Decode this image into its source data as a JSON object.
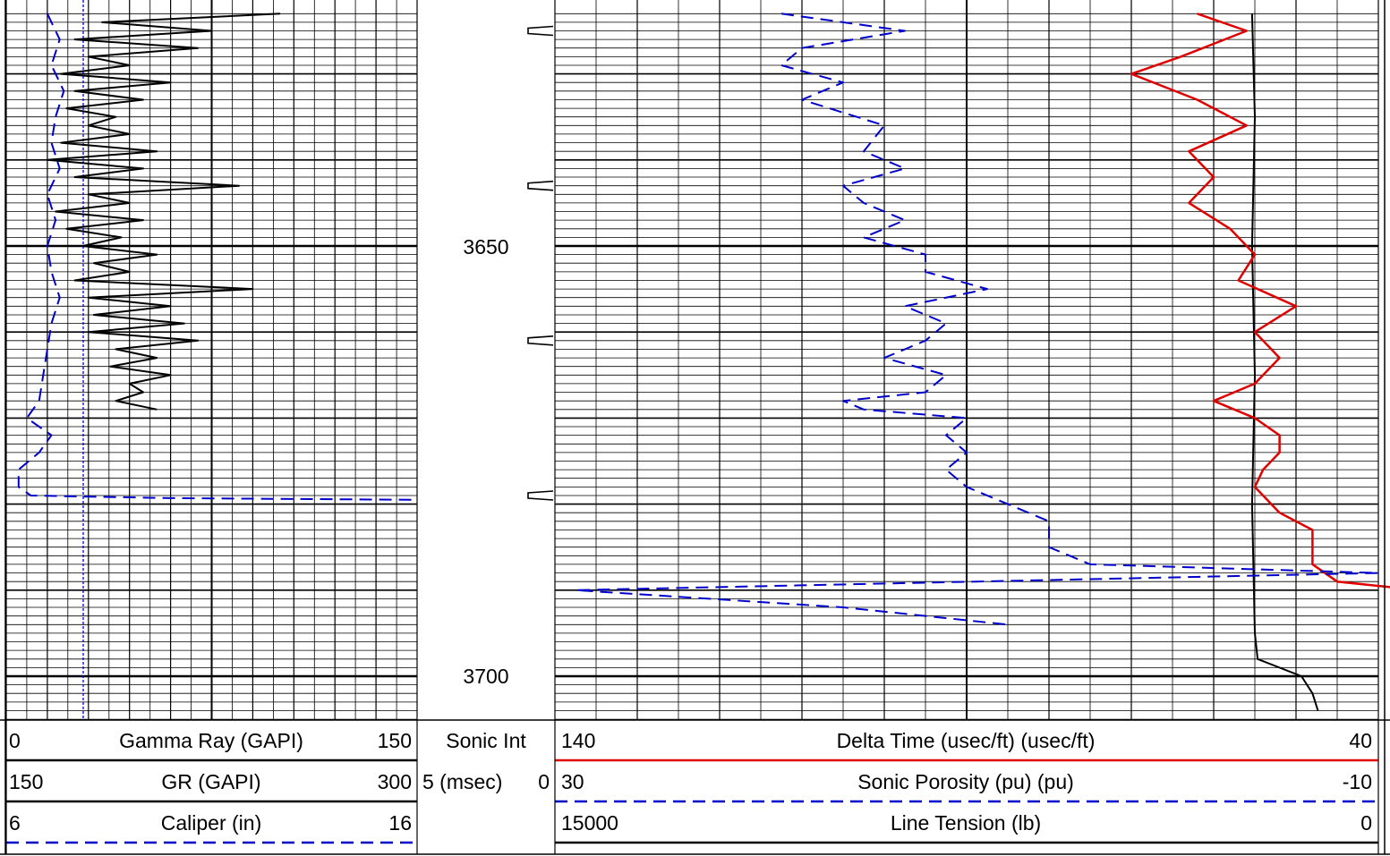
{
  "chart_data": {
    "type": "line",
    "title": "",
    "depth_ticks": [
      "3650",
      "3700"
    ],
    "depth_range": [
      3623,
      3725
    ],
    "tracks": [
      {
        "name": "track-1",
        "grid": "linear",
        "curves": [
          {
            "label": "Gamma Ray (GAPI)",
            "min": "0",
            "max": "150",
            "unit_min": 0,
            "unit_max": 150,
            "color": "#000000",
            "style": "solid",
            "points": [
              [
                3623,
                100
              ],
              [
                3624,
                35
              ],
              [
                3625,
                75
              ],
              [
                3626,
                25
              ],
              [
                3627,
                70
              ],
              [
                3628,
                30
              ],
              [
                3629,
                45
              ],
              [
                3630,
                20
              ],
              [
                3631,
                60
              ],
              [
                3632,
                25
              ],
              [
                3633,
                50
              ],
              [
                3634,
                22
              ],
              [
                3635,
                40
              ],
              [
                3636,
                30
              ],
              [
                3637,
                45
              ],
              [
                3638,
                20
              ],
              [
                3639,
                55
              ],
              [
                3640,
                15
              ],
              [
                3641,
                50
              ],
              [
                3642,
                25
              ],
              [
                3643,
                85
              ],
              [
                3644,
                30
              ],
              [
                3645,
                45
              ],
              [
                3646,
                18
              ],
              [
                3647,
                50
              ],
              [
                3648,
                22
              ],
              [
                3649,
                42
              ],
              [
                3650,
                28
              ],
              [
                3651,
                55
              ],
              [
                3652,
                32
              ],
              [
                3653,
                45
              ],
              [
                3654,
                25
              ],
              [
                3655,
                90
              ],
              [
                3656,
                30
              ],
              [
                3657,
                60
              ],
              [
                3658,
                32
              ],
              [
                3659,
                65
              ],
              [
                3660,
                30
              ],
              [
                3661,
                70
              ],
              [
                3662,
                40
              ],
              [
                3663,
                55
              ],
              [
                3664,
                38
              ],
              [
                3665,
                60
              ],
              [
                3666,
                45
              ],
              [
                3667,
                50
              ],
              [
                3668,
                40
              ],
              [
                3669,
                55
              ]
            ]
          },
          {
            "label": "Caliper (in)",
            "min": "6",
            "max": "16",
            "unit_min": 6,
            "unit_max": 16,
            "color": "#0000cc",
            "style": "dash",
            "points": [
              [
                3623,
                7.0
              ],
              [
                3626,
                7.3
              ],
              [
                3629,
                7.1
              ],
              [
                3632,
                7.4
              ],
              [
                3635,
                7.2
              ],
              [
                3638,
                7.1
              ],
              [
                3641,
                7.3
              ],
              [
                3644,
                7.0
              ],
              [
                3647,
                7.2
              ],
              [
                3650,
                7.0
              ],
              [
                3653,
                7.1
              ],
              [
                3656,
                7.3
              ],
              [
                3659,
                7.1
              ],
              [
                3662,
                7.0
              ],
              [
                3665,
                6.9
              ],
              [
                3668,
                6.8
              ],
              [
                3670,
                6.5
              ],
              [
                3672,
                7.1
              ],
              [
                3674,
                6.8
              ],
              [
                3676,
                6.3
              ],
              [
                3678,
                6.3
              ],
              [
                3679,
                6.6
              ],
              [
                3679.3,
                10
              ],
              [
                3679.5,
                16
              ]
            ]
          }
        ]
      },
      {
        "name": "depth-track",
        "curves": [
          {
            "label": "Sonic Int",
            "min": "5  (msec)",
            "max": "0"
          }
        ],
        "integration_ticks": [
          3625,
          3643,
          3661,
          3679
        ]
      },
      {
        "name": "track-2",
        "grid": "linear",
        "curves": [
          {
            "label": "Delta Time (usec/ft) (usec/ft)",
            "min": "140",
            "max": "40",
            "unit_min": 140,
            "unit_max": 40,
            "color": "#e00000",
            "style": "solid",
            "points": [
              [
                3623,
                62
              ],
              [
                3625,
                56
              ],
              [
                3628,
                64
              ],
              [
                3630,
                70
              ],
              [
                3633,
                62
              ],
              [
                3636,
                56
              ],
              [
                3639,
                63
              ],
              [
                3642,
                60
              ],
              [
                3645,
                63
              ],
              [
                3648,
                58
              ],
              [
                3651,
                55
              ],
              [
                3654,
                57
              ],
              [
                3657,
                50
              ],
              [
                3660,
                55
              ],
              [
                3663,
                52
              ],
              [
                3666,
                55
              ],
              [
                3668,
                60
              ],
              [
                3670,
                55
              ],
              [
                3672,
                52
              ],
              [
                3674,
                52
              ],
              [
                3676,
                54
              ],
              [
                3678,
                55
              ],
              [
                3681,
                52
              ],
              [
                3683,
                48
              ],
              [
                3687,
                48
              ],
              [
                3689,
                45
              ],
              [
                3690,
                35
              ]
            ]
          },
          {
            "label": "Sonic Porosity (pu) (pu)",
            "min": "30",
            "max": "-10",
            "unit_min": 30,
            "unit_max": -10,
            "color": "#0000cc",
            "style": "dash",
            "points": [
              [
                3623,
                19
              ],
              [
                3625,
                13
              ],
              [
                3627,
                18
              ],
              [
                3629,
                19
              ],
              [
                3631,
                16
              ],
              [
                3633,
                18
              ],
              [
                3636,
                14
              ],
              [
                3639,
                15
              ],
              [
                3641,
                13
              ],
              [
                3643,
                16
              ],
              [
                3645,
                15
              ],
              [
                3647,
                13
              ],
              [
                3649,
                15
              ],
              [
                3651,
                12
              ],
              [
                3653,
                12
              ],
              [
                3655,
                9
              ],
              [
                3657,
                13
              ],
              [
                3659,
                11
              ],
              [
                3661,
                12
              ],
              [
                3663,
                14
              ],
              [
                3665,
                11
              ],
              [
                3667,
                12
              ],
              [
                3668,
                16
              ],
              [
                3669,
                15
              ],
              [
                3670,
                10
              ],
              [
                3672,
                11
              ],
              [
                3674,
                10
              ],
              [
                3676,
                11
              ],
              [
                3678,
                10
              ],
              [
                3680,
                8
              ],
              [
                3682,
                6
              ],
              [
                3685,
                6
              ],
              [
                3687,
                4
              ],
              [
                3688,
                -10
              ],
              [
                3690,
                29
              ],
              [
                3692,
                16
              ],
              [
                3694,
                8
              ]
            ]
          },
          {
            "label": "Line Tension (lb)",
            "min": "15000",
            "max": "0",
            "unit_min": 15000,
            "unit_max": 0,
            "color": "#000000",
            "style": "solid",
            "points": [
              [
                3623,
                2300
              ],
              [
                3635,
                2250
              ],
              [
                3650,
                2300
              ],
              [
                3665,
                2250
              ],
              [
                3680,
                2300
              ],
              [
                3695,
                2250
              ],
              [
                3698,
                2200
              ],
              [
                3700,
                1400
              ],
              [
                3702,
                1200
              ],
              [
                3704,
                1100
              ]
            ]
          }
        ]
      }
    ],
    "headers": [
      {
        "label": "Gamma Ray (GAPI)",
        "min": "0",
        "max": "150",
        "color": "#000000",
        "style": "solid"
      },
      {
        "label": "GR (GAPI)",
        "min": "150",
        "max": "300",
        "color": "#000000",
        "style": "solid"
      },
      {
        "label": "Caliper (in)",
        "min": "6",
        "max": "16",
        "color": "#0000cc",
        "style": "dash"
      },
      {
        "label": "Sonic Int",
        "min": "",
        "max": "",
        "color": "#000000",
        "style": "none"
      },
      {
        "label": "5  (msec)",
        "min": "",
        "max": "0",
        "color": "#000000",
        "style": "none"
      },
      {
        "label": "Delta Time (usec/ft) (usec/ft)",
        "min": "140",
        "max": "40",
        "color": "#e00000",
        "style": "solid"
      },
      {
        "label": "Sonic Porosity (pu) (pu)",
        "min": "30",
        "max": "-10",
        "color": "#0000cc",
        "style": "dash"
      },
      {
        "label": "Line Tension (lb)",
        "min": "15000",
        "max": "0",
        "color": "#000000",
        "style": "solid"
      }
    ]
  }
}
